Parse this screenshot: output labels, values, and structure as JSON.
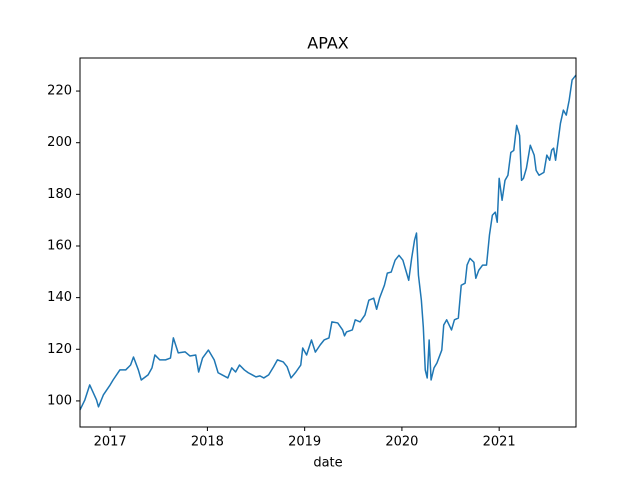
{
  "chart_data": {
    "type": "line",
    "title": "APAX",
    "xlabel": "date",
    "x": [
      2016.69,
      2016.74,
      2016.79,
      2016.86,
      2016.88,
      2016.93,
      2017.0,
      2017.03,
      2017.1,
      2017.16,
      2017.21,
      2017.24,
      2017.29,
      2017.32,
      2017.39,
      2017.43,
      2017.46,
      2017.51,
      2017.57,
      2017.62,
      2017.65,
      2017.7,
      2017.77,
      2017.82,
      2017.88,
      2017.91,
      2017.95,
      2018.01,
      2018.07,
      2018.11,
      2018.15,
      2018.21,
      2018.25,
      2018.29,
      2018.33,
      2018.38,
      2018.42,
      2018.46,
      2018.5,
      2018.54,
      2018.58,
      2018.63,
      2018.68,
      2018.72,
      2018.78,
      2018.82,
      2018.86,
      2018.91,
      2018.96,
      2018.98,
      2019.02,
      2019.07,
      2019.11,
      2019.16,
      2019.2,
      2019.25,
      2019.28,
      2019.34,
      2019.39,
      2019.41,
      2019.43,
      2019.49,
      2019.52,
      2019.57,
      2019.62,
      2019.66,
      2019.71,
      2019.74,
      2019.77,
      2019.82,
      2019.85,
      2019.89,
      2019.93,
      2019.97,
      2020.01,
      2020.04,
      2020.07,
      2020.1,
      2020.13,
      2020.15,
      2020.17,
      2020.2,
      2020.22,
      2020.24,
      2020.26,
      2020.28,
      2020.3,
      2020.33,
      2020.36,
      2020.41,
      2020.43,
      2020.46,
      2020.51,
      2020.54,
      2020.58,
      2020.61,
      2020.65,
      2020.67,
      2020.7,
      2020.74,
      2020.76,
      2020.79,
      2020.83,
      2020.87,
      2020.9,
      2020.93,
      2020.96,
      2020.98,
      2021.0,
      2021.03,
      2021.06,
      2021.09,
      2021.12,
      2021.15,
      2021.18,
      2021.21,
      2021.23,
      2021.25,
      2021.28,
      2021.32,
      2021.36,
      2021.38,
      2021.41,
      2021.46,
      2021.49,
      2021.52,
      2021.54,
      2021.56,
      2021.58,
      2021.63,
      2021.66,
      2021.69,
      2021.72,
      2021.75,
      2021.79
    ],
    "series": [
      {
        "color": "#1f77b4",
        "values": [
          96.5,
          100.4,
          106.2,
          100.4,
          97.7,
          102.3,
          106.2,
          108.1,
          112.0,
          112.0,
          113.9,
          117.0,
          112.0,
          108.1,
          110.1,
          112.8,
          117.8,
          115.9,
          115.9,
          116.6,
          124.4,
          118.6,
          119.0,
          117.4,
          117.8,
          111.2,
          116.6,
          119.7,
          115.9,
          110.9,
          110.1,
          108.9,
          112.8,
          111.2,
          113.9,
          112.0,
          110.9,
          110.1,
          109.3,
          109.7,
          108.9,
          110.1,
          113.2,
          115.9,
          115.1,
          113.2,
          108.9,
          111.2,
          113.9,
          120.5,
          117.8,
          123.6,
          118.9,
          121.7,
          123.6,
          124.4,
          130.6,
          130.2,
          127.5,
          125.2,
          126.7,
          127.5,
          131.4,
          130.6,
          133.3,
          139.0,
          139.8,
          135.5,
          139.8,
          144.8,
          149.5,
          149.9,
          154.5,
          156.4,
          154.5,
          150.6,
          146.7,
          155.2,
          162.3,
          165.0,
          148.7,
          139.0,
          128.6,
          112.0,
          108.9,
          123.6,
          108.1,
          112.8,
          114.7,
          119.7,
          129.4,
          131.4,
          127.5,
          131.4,
          132.1,
          144.8,
          145.6,
          152.6,
          155.2,
          153.7,
          147.5,
          150.6,
          152.6,
          152.6,
          164.2,
          171.9,
          173.1,
          169.2,
          186.2,
          177.7,
          185.4,
          187.4,
          196.2,
          197.0,
          206.7,
          202.8,
          185.4,
          186.2,
          190.1,
          199.0,
          195.2,
          189.3,
          187.4,
          188.5,
          195.2,
          193.2,
          197.1,
          197.9,
          193.2,
          207.5,
          212.6,
          210.7,
          216.5,
          224.3,
          226.2
        ]
      }
    ],
    "xlim": [
      2016.69,
      2021.79
    ],
    "xticks": [
      2017,
      2018,
      2019,
      2020,
      2021
    ],
    "ylim": [
      89.9,
      232.8
    ],
    "yticks": [
      100,
      120,
      140,
      160,
      180,
      200,
      220
    ]
  }
}
